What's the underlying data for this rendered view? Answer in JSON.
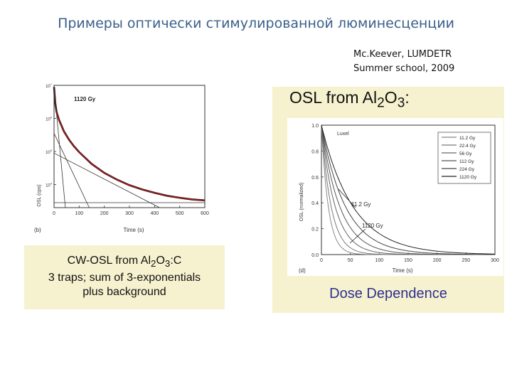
{
  "slide": {
    "title": "Примеры оптически стимулированной люминесценции",
    "citation_line1": "Mc.Keever, LUMDETR",
    "citation_line2": "Summer school, 2009"
  },
  "left_figure": {
    "panel_label": "(b)",
    "annotation": "1120 Gy",
    "caption_line1_prefix": "CW-OSL from Al",
    "caption_line1_sub1": "2",
    "caption_line1_mid": "O",
    "caption_line1_sub2": "3",
    "caption_line1_suffix": ":C",
    "caption_line2": "3 traps; sum of 3-exponentials",
    "caption_line3": "plus background"
  },
  "right_figure": {
    "heading_prefix": "OSL from Al",
    "heading_sub1": "2",
    "heading_mid": "O",
    "heading_sub2": "3",
    "heading_suffix": ":",
    "panel_label": "(d)",
    "corner_label": "Luxel",
    "annotation_low": "11.2 Gy",
    "annotation_high": "1120 Gy",
    "caption": "Dose Dependence"
  },
  "chart_data": [
    {
      "type": "line",
      "xlabel": "Time (s)",
      "ylabel": "OSL (cps)",
      "xlim": [
        0,
        600
      ],
      "x_ticks": [
        "0",
        "100",
        "200",
        "300",
        "400",
        "500",
        "600"
      ],
      "y_scale": "log",
      "y_ticks": [
        {
          "base": "10",
          "exp": "7"
        },
        {
          "base": "10",
          "exp": "6"
        },
        {
          "base": "10",
          "exp": "5"
        },
        {
          "base": "10",
          "exp": "4"
        }
      ],
      "ylim_log10": [
        3.3,
        7.0
      ],
      "series": [
        {
          "role": "data",
          "color": "#111111",
          "x": [
            0,
            5,
            10,
            20,
            40,
            60,
            80,
            100,
            150,
            200,
            250,
            300,
            350,
            400,
            450,
            500,
            550,
            600
          ],
          "y_log10": [
            6.95,
            6.45,
            6.2,
            5.95,
            5.6,
            5.35,
            5.15,
            4.98,
            4.62,
            4.35,
            4.15,
            3.98,
            3.85,
            3.75,
            3.66,
            3.6,
            3.55,
            3.52
          ]
        },
        {
          "role": "fit",
          "color": "#d11a1a",
          "x": [
            0,
            5,
            10,
            20,
            40,
            60,
            80,
            100,
            150,
            200,
            250,
            300,
            350,
            400,
            450,
            500,
            550,
            600
          ],
          "y_log10": [
            6.95,
            6.45,
            6.2,
            5.95,
            5.6,
            5.35,
            5.15,
            4.98,
            4.62,
            4.35,
            4.15,
            3.98,
            3.85,
            3.75,
            3.66,
            3.6,
            3.55,
            3.52
          ]
        },
        {
          "role": "component",
          "color": "#333333",
          "x": [
            0,
            45
          ],
          "y_log10": [
            6.95,
            3.3
          ]
        },
        {
          "role": "component",
          "color": "#333333",
          "x": [
            0,
            140
          ],
          "y_log10": [
            5.55,
            3.3
          ]
        },
        {
          "role": "component",
          "color": "#333333",
          "x": [
            0,
            420
          ],
          "y_log10": [
            4.95,
            3.3
          ]
        },
        {
          "role": "background",
          "color": "#333333",
          "x": [
            0,
            600
          ],
          "y_log10": [
            3.45,
            3.45
          ]
        }
      ]
    },
    {
      "type": "line",
      "xlabel": "Time (s)",
      "ylabel": "OSL (normalized)",
      "xlim": [
        0,
        300
      ],
      "ylim": [
        0,
        1.0
      ],
      "x_ticks": [
        "0",
        "50",
        "100",
        "150",
        "200",
        "250",
        "300"
      ],
      "y_ticks": [
        "0.0",
        "0.2",
        "0.4",
        "0.6",
        "0.8",
        "1.0"
      ],
      "legend_position": "top-right",
      "series": [
        {
          "name": "11.2 Gy",
          "tau": 12
        },
        {
          "name": "22.4 Gy",
          "tau": 17
        },
        {
          "name": "56 Gy",
          "tau": 24
        },
        {
          "name": "112 Gy",
          "tau": 32
        },
        {
          "name": "224 Gy",
          "tau": 42
        },
        {
          "name": "1120 Gy",
          "tau": 55
        }
      ],
      "x": [
        0,
        5,
        10,
        20,
        30,
        50,
        75,
        100,
        150,
        200,
        250,
        300
      ]
    }
  ]
}
